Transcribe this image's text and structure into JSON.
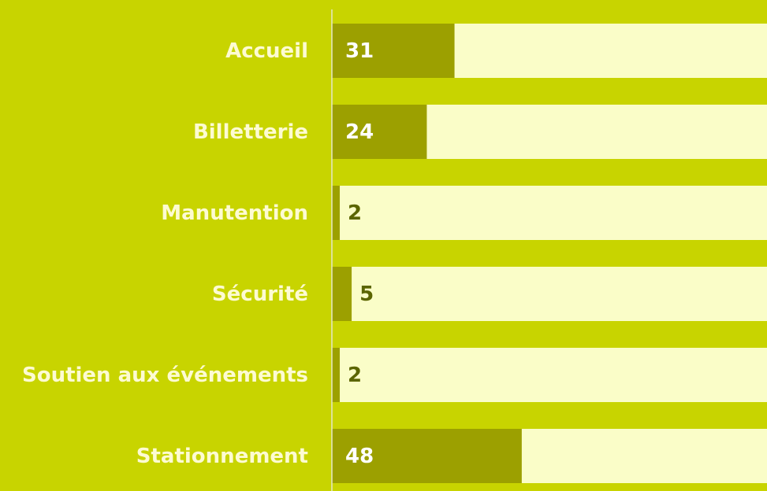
{
  "chart_data": {
    "type": "bar",
    "orientation": "horizontal",
    "categories": [
      "Accueil",
      "Billetterie",
      "Manutention",
      "Sécurité",
      "Soutien aux événements",
      "Stationnement"
    ],
    "values": [
      31,
      24,
      2,
      5,
      2,
      48
    ],
    "color": "#9ca000",
    "track_color": "#fafdc8",
    "xlim": [
      0,
      110
    ]
  }
}
